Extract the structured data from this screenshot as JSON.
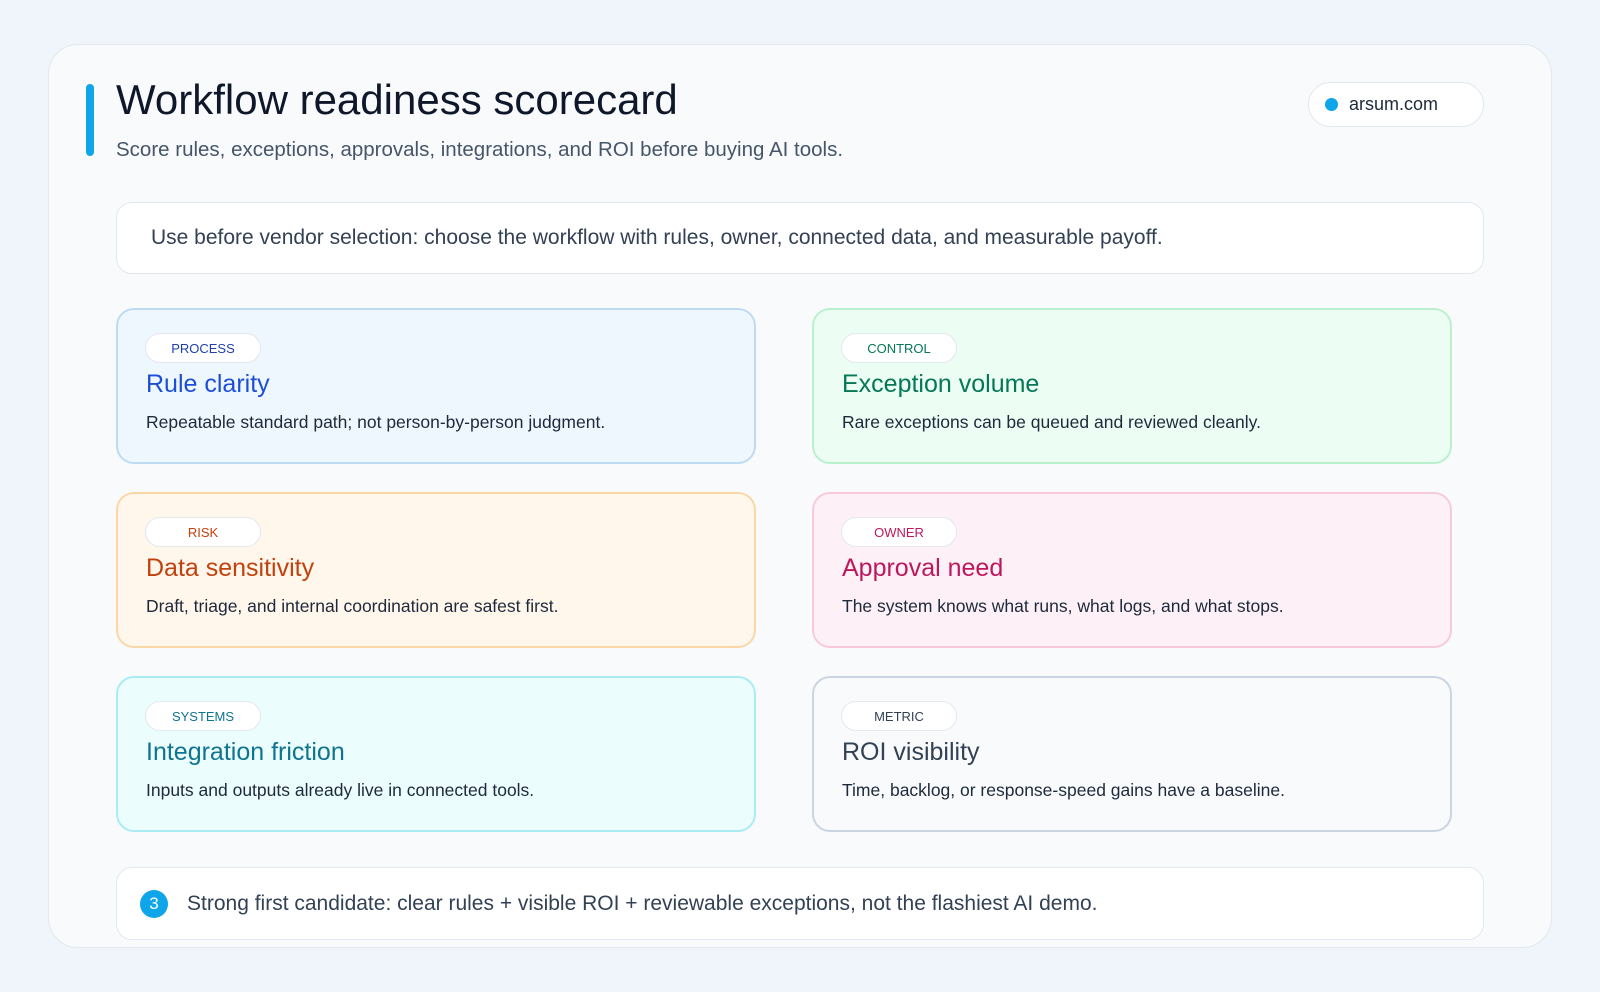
{
  "header": {
    "title": "Workflow readiness scorecard",
    "subtitle": "Score rules, exceptions, approvals, integrations, and ROI before buying AI tools.",
    "site": "arsum.com"
  },
  "note": "Use before vendor selection: choose the workflow with rules, owner, connected data, and measurable payoff.",
  "cards": [
    {
      "tag": "PROCESS",
      "title": "Rule clarity",
      "text": "Repeatable standard path; not person-by-person judgment."
    },
    {
      "tag": "CONTROL",
      "title": "Exception volume",
      "text": "Rare exceptions can be queued and reviewed cleanly."
    },
    {
      "tag": "RISK",
      "title": "Data sensitivity",
      "text": "Draft, triage, and internal coordination are safest first."
    },
    {
      "tag": "OWNER",
      "title": "Approval need",
      "text": "The system knows what runs, what logs, and what stops."
    },
    {
      "tag": "SYSTEMS",
      "title": "Integration friction",
      "text": "Inputs and outputs already live in connected tools."
    },
    {
      "tag": "METRIC",
      "title": "ROI visibility",
      "text": "Time, backlog, or response-speed gains have a baseline."
    }
  ],
  "footer": {
    "badge": "3",
    "text": "Strong first candidate: clear rules + visible ROI + reviewable exceptions, not the flashiest AI demo."
  }
}
